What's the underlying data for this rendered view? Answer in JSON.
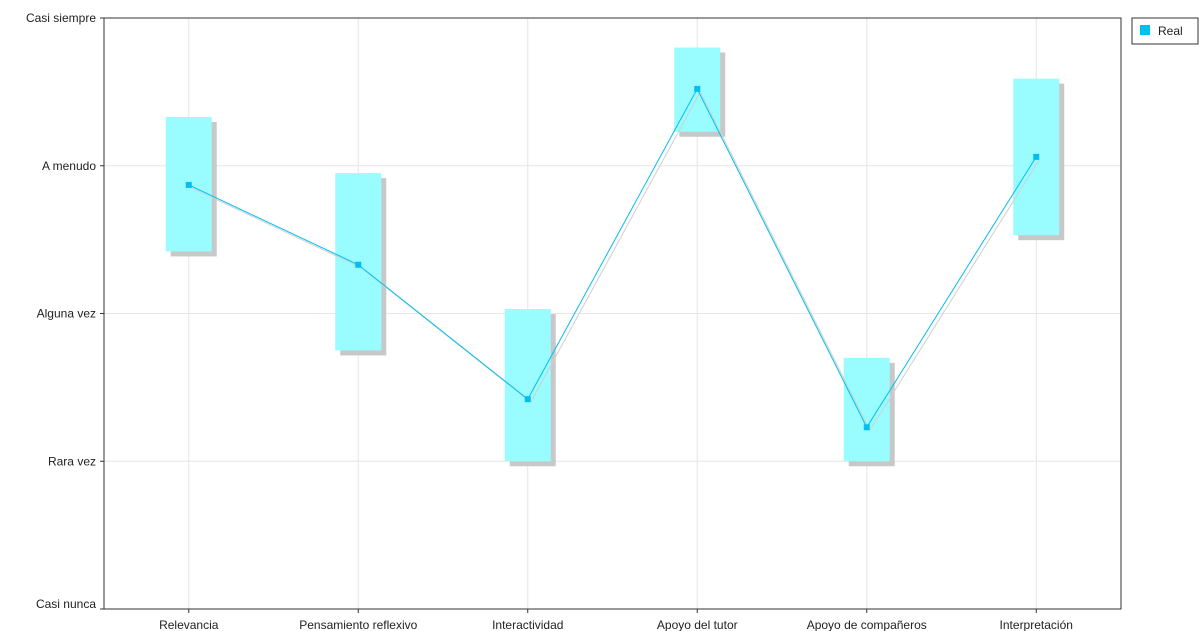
{
  "chart_data": {
    "type": "line",
    "y_levels": [
      "Casi nunca",
      "Rara vez",
      "Alguna vez",
      "A menudo",
      "Casi siempre"
    ],
    "ylim": [
      1,
      5
    ],
    "categories": [
      "Relevancia",
      "Pensamiento reflexivo",
      "Interactividad",
      "Apoyo del tutor",
      "Apoyo de compañeros",
      "Interpretación"
    ],
    "grid": true,
    "legend_position": "top-right",
    "series": [
      {
        "name": "Real",
        "color": "#00bfef",
        "band_color": "#99fcff",
        "shadow_color": "#c8c8c8",
        "values": [
          3.87,
          3.33,
          2.42,
          4.52,
          2.23,
          4.06
        ],
        "band_low": [
          3.42,
          2.75,
          2.0,
          4.23,
          2.0,
          3.53
        ],
        "band_high": [
          4.33,
          3.95,
          3.03,
          4.8,
          2.7,
          4.59
        ]
      }
    ]
  }
}
